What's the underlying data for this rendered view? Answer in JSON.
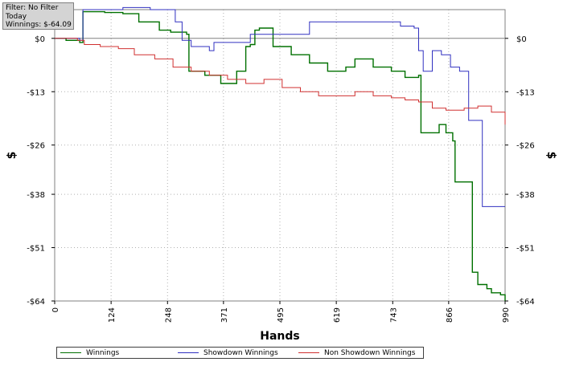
{
  "filter": {
    "line1": "Filter: No Filter",
    "line2": "Today",
    "line3": "Winnings: $-64.09"
  },
  "chart_data": {
    "type": "line",
    "title": "",
    "xlabel": "Hands",
    "ylabel": "$",
    "xlim": [
      0,
      990
    ],
    "ylim": [
      -64,
      7
    ],
    "grid": true,
    "legend_position": "bottom",
    "x_ticks": [
      "0",
      "124",
      "248",
      "371",
      "495",
      "619",
      "743",
      "866",
      "990"
    ],
    "y_ticks": [
      "$0",
      "-$13",
      "-$26",
      "-$38",
      "-$51",
      "-$64"
    ],
    "y_tick_values": [
      0,
      -13,
      -26,
      -38,
      -51,
      -64
    ],
    "series": [
      {
        "name": "Winnings",
        "color": "#007000",
        "points": [
          [
            0,
            0
          ],
          [
            25,
            -0.5
          ],
          [
            55,
            -1
          ],
          [
            62,
            6.5
          ],
          [
            110,
            6.3
          ],
          [
            150,
            6
          ],
          [
            185,
            4
          ],
          [
            230,
            2
          ],
          [
            255,
            1.5
          ],
          [
            290,
            1
          ],
          [
            295,
            -8
          ],
          [
            330,
            -9
          ],
          [
            365,
            -11
          ],
          [
            400,
            -8
          ],
          [
            420,
            -2
          ],
          [
            430,
            -1.5
          ],
          [
            440,
            2
          ],
          [
            450,
            2.5
          ],
          [
            480,
            -2
          ],
          [
            520,
            -4
          ],
          [
            560,
            -6
          ],
          [
            600,
            -8
          ],
          [
            640,
            -7
          ],
          [
            660,
            -5
          ],
          [
            700,
            -7
          ],
          [
            740,
            -8
          ],
          [
            770,
            -9.5
          ],
          [
            800,
            -9
          ],
          [
            805,
            -23
          ],
          [
            820,
            -23
          ],
          [
            845,
            -21
          ],
          [
            860,
            -23
          ],
          [
            875,
            -25
          ],
          [
            880,
            -35
          ],
          [
            900,
            -35
          ],
          [
            918,
            -57
          ],
          [
            930,
            -60
          ],
          [
            950,
            -61
          ],
          [
            960,
            -62
          ],
          [
            980,
            -62.5
          ],
          [
            990,
            -64
          ]
        ]
      },
      {
        "name": "Showdown Winnings",
        "color": "#3030c0",
        "points": [
          [
            0,
            0
          ],
          [
            55,
            -0.5
          ],
          [
            62,
            7
          ],
          [
            150,
            7.5
          ],
          [
            210,
            7
          ],
          [
            240,
            7
          ],
          [
            265,
            4
          ],
          [
            280,
            -0.5
          ],
          [
            295,
            -0.5
          ],
          [
            300,
            -2
          ],
          [
            340,
            -3
          ],
          [
            350,
            -1
          ],
          [
            410,
            -1
          ],
          [
            430,
            1
          ],
          [
            490,
            1
          ],
          [
            560,
            4
          ],
          [
            640,
            4
          ],
          [
            760,
            3
          ],
          [
            790,
            2.5
          ],
          [
            800,
            -3
          ],
          [
            810,
            -8
          ],
          [
            830,
            -3
          ],
          [
            850,
            -4
          ],
          [
            870,
            -7
          ],
          [
            890,
            -8
          ],
          [
            910,
            -20
          ],
          [
            940,
            -41
          ],
          [
            990,
            -41
          ]
        ]
      },
      {
        "name": "Non Showdown Winnings",
        "color": "#d03030",
        "points": [
          [
            0,
            0
          ],
          [
            50,
            -0.5
          ],
          [
            65,
            -1.5
          ],
          [
            100,
            -2
          ],
          [
            140,
            -2.5
          ],
          [
            175,
            -4
          ],
          [
            220,
            -5
          ],
          [
            260,
            -7
          ],
          [
            300,
            -8
          ],
          [
            340,
            -9
          ],
          [
            380,
            -10
          ],
          [
            420,
            -11
          ],
          [
            460,
            -10
          ],
          [
            500,
            -12
          ],
          [
            540,
            -13
          ],
          [
            580,
            -14
          ],
          [
            620,
            -14
          ],
          [
            660,
            -13
          ],
          [
            700,
            -14
          ],
          [
            740,
            -14.5
          ],
          [
            770,
            -15
          ],
          [
            800,
            -15.5
          ],
          [
            830,
            -17
          ],
          [
            860,
            -17.5
          ],
          [
            900,
            -17
          ],
          [
            930,
            -16.5
          ],
          [
            960,
            -18
          ],
          [
            990,
            -21
          ]
        ]
      }
    ]
  }
}
